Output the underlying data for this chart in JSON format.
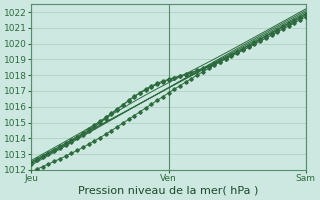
{
  "bg_color": "#cce8e0",
  "grid_color": "#aaccbb",
  "line_color": "#2d6a3f",
  "marker_color": "#2d6a3f",
  "xlabel": "Pression niveau de la mer( hPa )",
  "xlabel_fontsize": 8,
  "tick_fontsize": 6.5,
  "ylim": [
    1012,
    1022.5
  ],
  "yticks": [
    1012,
    1013,
    1014,
    1015,
    1016,
    1017,
    1018,
    1019,
    1020,
    1021,
    1022
  ],
  "xtick_labels": [
    "Jeu",
    "Ven",
    "Sam"
  ],
  "xtick_positions": [
    0,
    96,
    192
  ],
  "total_points": 192,
  "day_lines": [
    0,
    96,
    192
  ],
  "figwidth": 3.2,
  "figheight": 2.0,
  "dpi": 100
}
